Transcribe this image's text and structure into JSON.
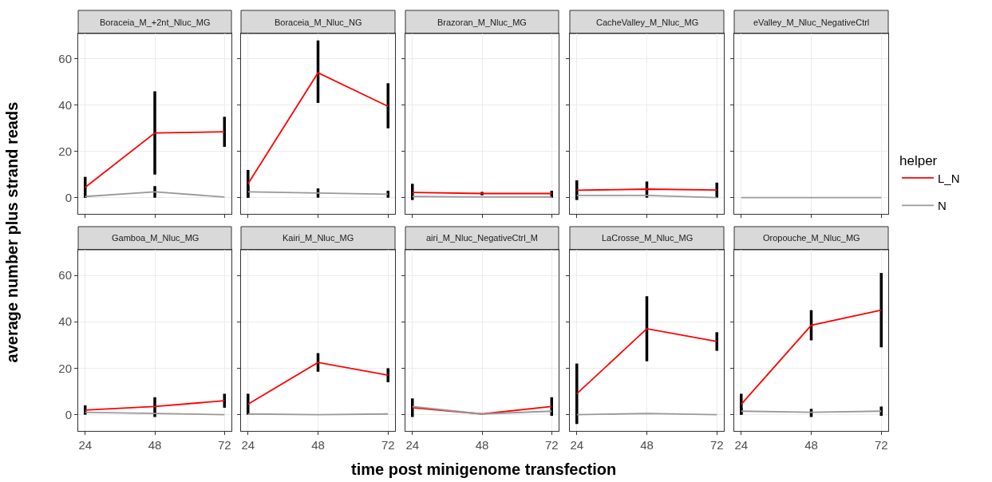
{
  "chart_data": [
    {
      "type": "line",
      "title": "Boraceia_M_+2nt_Nluc_MG",
      "ylabel": "average number plus strand reads",
      "legend_title": "helper",
      "legend": "right",
      "grid": true,
      "marker": "none",
      "tick_labels": "y",
      "x": [
        24,
        48,
        72
      ],
      "xlim": [
        21.6,
        74.4
      ],
      "xticks": [
        24,
        48,
        72
      ],
      "ylim": [
        -7,
        71
      ],
      "yticks": [
        0,
        20,
        40,
        60
      ],
      "series": [
        {
          "name": "L_N",
          "color": "#ff0000",
          "values": [
            4.5,
            28,
            28.5
          ],
          "errors": [
            [
              0,
              9
            ],
            [
              10,
              46
            ],
            [
              22,
              35
            ]
          ]
        },
        {
          "name": "N",
          "color": "#999999",
          "values": [
            0.5,
            2.5,
            0.3
          ],
          "errors": [
            [
              0,
              1
            ],
            [
              0,
              5
            ],
            null
          ]
        }
      ]
    },
    {
      "type": "line",
      "title": "Boraceia_M_Nluc_NG",
      "grid": true,
      "marker": "none",
      "tick_labels": false,
      "x": [
        24,
        48,
        72
      ],
      "xlim": [
        21.6,
        74.4
      ],
      "xticks": [
        24,
        48,
        72
      ],
      "ylim": [
        -7,
        71
      ],
      "yticks": [
        0,
        20,
        40,
        60
      ],
      "series": [
        {
          "color": "#ff0000",
          "values": [
            6,
            54,
            39.5
          ],
          "errors": [
            [
              0,
              12
            ],
            [
              41,
              68
            ],
            [
              30,
              49.5
            ]
          ]
        },
        {
          "color": "#999999",
          "values": [
            2.5,
            2,
            1.5
          ],
          "errors": [
            [
              0,
              5
            ],
            [
              0,
              4
            ],
            [
              0,
              3
            ]
          ]
        }
      ]
    },
    {
      "type": "line",
      "title": "Brazoran_M_Nluc_MG",
      "grid": true,
      "marker": "none",
      "tick_labels": false,
      "x": [
        24,
        48,
        72
      ],
      "xlim": [
        21.6,
        74.4
      ],
      "xticks": [
        24,
        48,
        72
      ],
      "ylim": [
        -7,
        71
      ],
      "yticks": [
        0,
        20,
        40,
        60
      ],
      "series": [
        {
          "color": "#ff0000",
          "values": [
            2.3,
            1.8,
            1.8
          ],
          "errors": [
            [
              -1,
              6
            ],
            [
              1,
              2.5
            ],
            [
              0,
              3
            ]
          ]
        },
        {
          "color": "#999999",
          "values": [
            0.5,
            0.3,
            0.3
          ]
        }
      ]
    },
    {
      "type": "line",
      "title": "CacheValley_M_Nluc_MG",
      "grid": true,
      "marker": "none",
      "tick_labels": false,
      "x": [
        24,
        48,
        72
      ],
      "xlim": [
        21.6,
        74.4
      ],
      "xticks": [
        24,
        48,
        72
      ],
      "ylim": [
        -7,
        71
      ],
      "yticks": [
        0,
        20,
        40,
        60
      ],
      "series": [
        {
          "color": "#ff0000",
          "values": [
            3.2,
            3.7,
            3.3
          ],
          "errors": [
            [
              -1,
              7.5
            ],
            [
              0,
              7
            ],
            [
              0,
              6.5
            ]
          ]
        },
        {
          "color": "#999999",
          "values": [
            1,
            1,
            0
          ]
        }
      ]
    },
    {
      "type": "line",
      "title": "eValley_M_Nluc_NegativeCtrl",
      "grid": true,
      "marker": "none",
      "tick_labels": false,
      "x": [
        24,
        48,
        72
      ],
      "xlim": [
        21.6,
        74.4
      ],
      "xticks": [
        24,
        48,
        72
      ],
      "ylim": [
        -7,
        71
      ],
      "yticks": [
        0,
        20,
        40,
        60
      ],
      "series": [
        {
          "color": "#ff0000",
          "values": [
            null,
            null,
            null
          ]
        },
        {
          "color": "#999999",
          "values": [
            0,
            0,
            0
          ]
        }
      ]
    },
    {
      "type": "line",
      "title": "Gamboa_M_Nluc_MG",
      "grid": true,
      "marker": "none",
      "x": [
        24,
        48,
        72
      ],
      "xlim": [
        21.6,
        74.4
      ],
      "xticks": [
        24,
        48,
        72
      ],
      "ylim": [
        -7,
        71
      ],
      "yticks": [
        0,
        20,
        40,
        60
      ],
      "series": [
        {
          "color": "#ff0000",
          "values": [
            2,
            3.5,
            6
          ],
          "errors": [
            [
              0,
              4
            ],
            [
              -1,
              7.5
            ],
            [
              3,
              9
            ]
          ]
        },
        {
          "color": "#999999",
          "values": [
            1,
            0.5,
            0
          ]
        }
      ]
    },
    {
      "type": "line",
      "title": "Kairi_M_Nluc_MG",
      "grid": true,
      "marker": "none",
      "tick_labels": "x",
      "x": [
        24,
        48,
        72
      ],
      "xlim": [
        21.6,
        74.4
      ],
      "xticks": [
        24,
        48,
        72
      ],
      "ylim": [
        -7,
        71
      ],
      "yticks": [
        0,
        20,
        40,
        60
      ],
      "series": [
        {
          "color": "#ff0000",
          "values": [
            4.5,
            22.5,
            17
          ],
          "errors": [
            [
              0,
              9
            ],
            [
              18.5,
              26.5
            ],
            [
              14,
              20
            ]
          ]
        },
        {
          "color": "#999999",
          "values": [
            0.3,
            0,
            0.3
          ]
        }
      ]
    },
    {
      "type": "line",
      "title": "airi_M_Nluc_NegativeCtrl_M",
      "xlabel": "time post minigenome transfection",
      "grid": true,
      "marker": "none",
      "tick_labels": "x",
      "x": [
        24,
        48,
        72
      ],
      "xlim": [
        21.6,
        74.4
      ],
      "xticks": [
        24,
        48,
        72
      ],
      "ylim": [
        -7,
        71
      ],
      "yticks": [
        0,
        20,
        40,
        60
      ],
      "series": [
        {
          "color": "#ff0000",
          "values": [
            3,
            0.3,
            3.5
          ],
          "errors": [
            [
              -1,
              7
            ],
            null,
            [
              -0.5,
              7.5
            ]
          ]
        },
        {
          "color": "#999999",
          "values": [
            3.5,
            0.3,
            1.5
          ]
        }
      ]
    },
    {
      "type": "line",
      "title": "LaCrosse_M_Nluc_MG",
      "grid": true,
      "marker": "none",
      "tick_labels": "x",
      "x": [
        24,
        48,
        72
      ],
      "xlim": [
        21.6,
        74.4
      ],
      "xticks": [
        24,
        48,
        72
      ],
      "ylim": [
        -7,
        71
      ],
      "yticks": [
        0,
        20,
        40,
        60
      ],
      "series": [
        {
          "color": "#ff0000",
          "values": [
            9,
            37,
            31.5
          ],
          "errors": [
            [
              -4,
              22
            ],
            [
              23,
              51
            ],
            [
              27.5,
              35.5
            ]
          ]
        },
        {
          "color": "#999999",
          "values": [
            0,
            0.5,
            0
          ]
        }
      ]
    },
    {
      "type": "line",
      "title": "Oropouche_M_Nluc_MG",
      "grid": true,
      "marker": "none",
      "tick_labels": "x",
      "x": [
        24,
        48,
        72
      ],
      "xlim": [
        21.6,
        74.4
      ],
      "xticks": [
        24,
        48,
        72
      ],
      "ylim": [
        -7,
        71
      ],
      "yticks": [
        0,
        20,
        40,
        60
      ],
      "series": [
        {
          "color": "#ff0000",
          "values": [
            4.5,
            38.5,
            45
          ],
          "errors": [
            [
              0,
              9
            ],
            [
              32,
              45
            ],
            [
              29,
              61
            ]
          ]
        },
        {
          "color": "#999999",
          "values": [
            1.5,
            1,
            1.5
          ],
          "errors": [
            [
              0,
              3
            ],
            [
              -1,
              2.5
            ],
            [
              -0.5,
              3.5
            ]
          ]
        }
      ]
    }
  ]
}
